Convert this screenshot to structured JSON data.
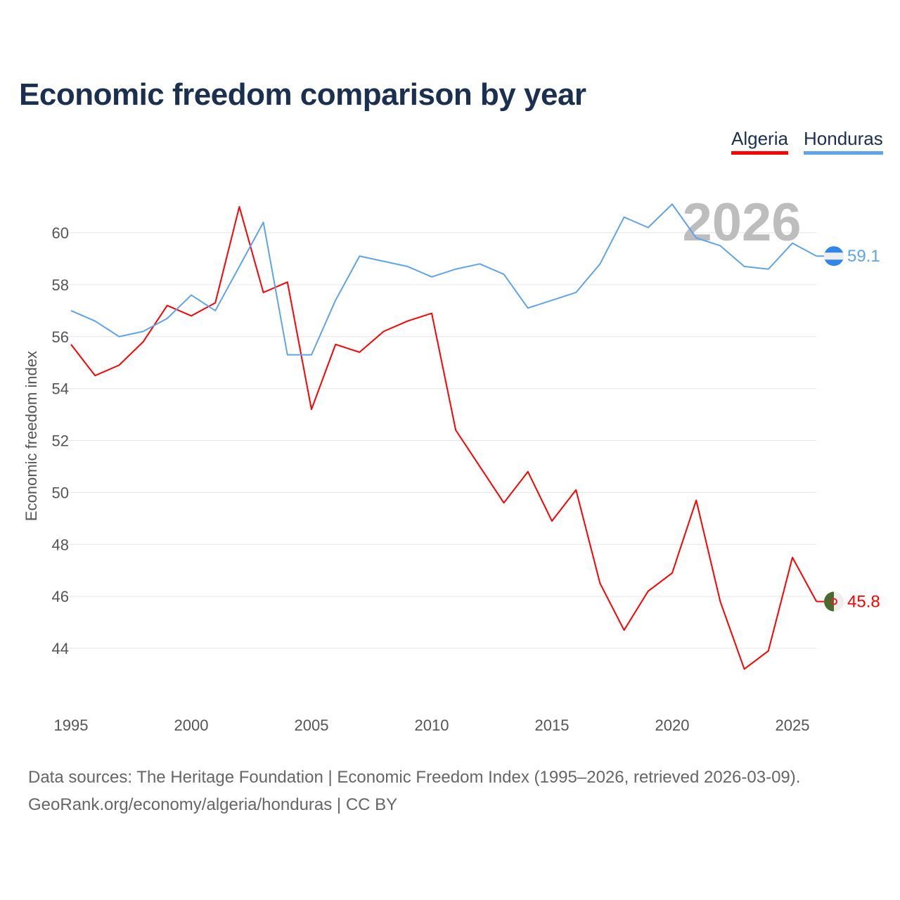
{
  "chart_data": {
    "type": "line",
    "title": "Economic freedom comparison by year",
    "xlabel": "",
    "ylabel": "Economic freedom index",
    "x": [
      1995,
      1996,
      1997,
      1998,
      1999,
      2000,
      2001,
      2002,
      2003,
      2004,
      2005,
      2006,
      2007,
      2008,
      2009,
      2010,
      2011,
      2012,
      2013,
      2014,
      2015,
      2016,
      2017,
      2018,
      2019,
      2020,
      2021,
      2022,
      2023,
      2024,
      2025,
      2026
    ],
    "xticks": [
      "1995",
      "2000",
      "2005",
      "2010",
      "2015",
      "2020",
      "2025"
    ],
    "yticks": [
      "44",
      "46",
      "48",
      "50",
      "52",
      "54",
      "56",
      "58",
      "60"
    ],
    "ylim": [
      44,
      60
    ],
    "xlim": [
      1995,
      2026
    ],
    "grid": true,
    "legend_position": "top-right",
    "watermark_year": "2026",
    "series": [
      {
        "name": "Algeria",
        "color": "#ff0000",
        "end_label": "45.8",
        "values": [
          55.7,
          54.5,
          54.9,
          55.8,
          57.2,
          56.8,
          57.3,
          61.0,
          57.7,
          58.1,
          53.2,
          55.7,
          55.4,
          56.2,
          56.6,
          56.9,
          52.4,
          51.0,
          49.6,
          50.8,
          48.9,
          50.1,
          46.5,
          44.7,
          46.2,
          46.9,
          49.7,
          45.8,
          43.2,
          43.9,
          47.5,
          45.8
        ]
      },
      {
        "name": "Honduras",
        "color": "#5fa4e8",
        "end_label": "59.1",
        "values": [
          57.0,
          56.6,
          56.0,
          56.2,
          56.7,
          57.6,
          57.0,
          58.7,
          60.4,
          55.3,
          55.3,
          57.4,
          59.1,
          58.9,
          58.7,
          58.3,
          58.6,
          58.8,
          58.4,
          57.1,
          57.4,
          57.7,
          58.8,
          60.6,
          60.2,
          61.1,
          59.8,
          59.5,
          58.7,
          58.6,
          59.6,
          59.1
        ]
      }
    ]
  },
  "source_line1": "Data sources: The Heritage Foundation | Economic Freedom Index (1995–2026, retrieved 2026-03-09).",
  "source_line2": "GeoRank.org/economy/algeria/honduras | CC BY"
}
